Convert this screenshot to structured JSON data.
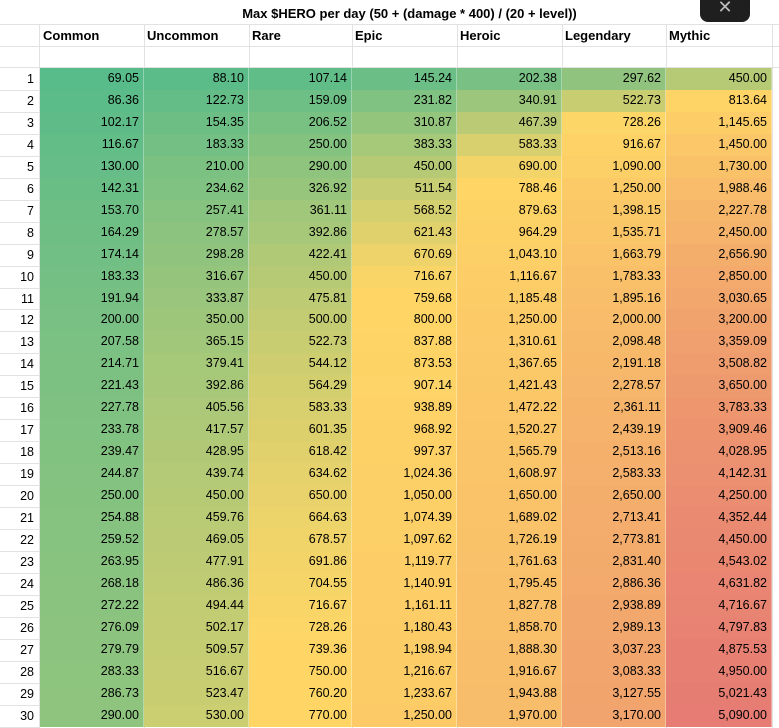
{
  "title": "Max $HERO per day (50 + (damage * 400) / (20 + level))",
  "close_icon": "close-icon",
  "close_glyph": "✕",
  "columns": [
    "Common",
    "Uncommon",
    "Rare",
    "Epic",
    "Heroic",
    "Legendary",
    "Mythic"
  ],
  "row_numbers": [
    "1",
    "2",
    "3",
    "4",
    "5",
    "6",
    "7",
    "8",
    "9",
    "10",
    "11",
    "12",
    "13",
    "14",
    "15",
    "16",
    "17",
    "18",
    "19",
    "20",
    "21",
    "22",
    "23",
    "24",
    "25",
    "26",
    "27",
    "28",
    "29",
    "30"
  ],
  "rows": [
    [
      "69.05",
      "88.10",
      "107.14",
      "145.24",
      "202.38",
      "297.62",
      "450.00"
    ],
    [
      "86.36",
      "122.73",
      "159.09",
      "231.82",
      "340.91",
      "522.73",
      "813.64"
    ],
    [
      "102.17",
      "154.35",
      "206.52",
      "310.87",
      "467.39",
      "728.26",
      "1,145.65"
    ],
    [
      "116.67",
      "183.33",
      "250.00",
      "383.33",
      "583.33",
      "916.67",
      "1,450.00"
    ],
    [
      "130.00",
      "210.00",
      "290.00",
      "450.00",
      "690.00",
      "1,090.00",
      "1,730.00"
    ],
    [
      "142.31",
      "234.62",
      "326.92",
      "511.54",
      "788.46",
      "1,250.00",
      "1,988.46"
    ],
    [
      "153.70",
      "257.41",
      "361.11",
      "568.52",
      "879.63",
      "1,398.15",
      "2,227.78"
    ],
    [
      "164.29",
      "278.57",
      "392.86",
      "621.43",
      "964.29",
      "1,535.71",
      "2,450.00"
    ],
    [
      "174.14",
      "298.28",
      "422.41",
      "670.69",
      "1,043.10",
      "1,663.79",
      "2,656.90"
    ],
    [
      "183.33",
      "316.67",
      "450.00",
      "716.67",
      "1,116.67",
      "1,783.33",
      "2,850.00"
    ],
    [
      "191.94",
      "333.87",
      "475.81",
      "759.68",
      "1,185.48",
      "1,895.16",
      "3,030.65"
    ],
    [
      "200.00",
      "350.00",
      "500.00",
      "800.00",
      "1,250.00",
      "2,000.00",
      "3,200.00"
    ],
    [
      "207.58",
      "365.15",
      "522.73",
      "837.88",
      "1,310.61",
      "2,098.48",
      "3,359.09"
    ],
    [
      "214.71",
      "379.41",
      "544.12",
      "873.53",
      "1,367.65",
      "2,191.18",
      "3,508.82"
    ],
    [
      "221.43",
      "392.86",
      "564.29",
      "907.14",
      "1,421.43",
      "2,278.57",
      "3,650.00"
    ],
    [
      "227.78",
      "405.56",
      "583.33",
      "938.89",
      "1,472.22",
      "2,361.11",
      "3,783.33"
    ],
    [
      "233.78",
      "417.57",
      "601.35",
      "968.92",
      "1,520.27",
      "2,439.19",
      "3,909.46"
    ],
    [
      "239.47",
      "428.95",
      "618.42",
      "997.37",
      "1,565.79",
      "2,513.16",
      "4,028.95"
    ],
    [
      "244.87",
      "439.74",
      "634.62",
      "1,024.36",
      "1,608.97",
      "2,583.33",
      "4,142.31"
    ],
    [
      "250.00",
      "450.00",
      "650.00",
      "1,050.00",
      "1,650.00",
      "2,650.00",
      "4,250.00"
    ],
    [
      "254.88",
      "459.76",
      "664.63",
      "1,074.39",
      "1,689.02",
      "2,713.41",
      "4,352.44"
    ],
    [
      "259.52",
      "469.05",
      "678.57",
      "1,097.62",
      "1,726.19",
      "2,773.81",
      "4,450.00"
    ],
    [
      "263.95",
      "477.91",
      "691.86",
      "1,119.77",
      "1,761.63",
      "2,831.40",
      "4,543.02"
    ],
    [
      "268.18",
      "486.36",
      "704.55",
      "1,140.91",
      "1,795.45",
      "2,886.36",
      "4,631.82"
    ],
    [
      "272.22",
      "494.44",
      "716.67",
      "1,161.11",
      "1,827.78",
      "2,938.89",
      "4,716.67"
    ],
    [
      "276.09",
      "502.17",
      "728.26",
      "1,180.43",
      "1,858.70",
      "2,989.13",
      "4,797.83"
    ],
    [
      "279.79",
      "509.57",
      "739.36",
      "1,198.94",
      "1,888.30",
      "3,037.23",
      "4,875.53"
    ],
    [
      "283.33",
      "516.67",
      "750.00",
      "1,216.67",
      "1,916.67",
      "3,083.33",
      "4,950.00"
    ],
    [
      "286.73",
      "523.47",
      "760.20",
      "1,233.67",
      "1,943.88",
      "3,127.55",
      "5,021.43"
    ],
    [
      "290.00",
      "530.00",
      "770.00",
      "1,250.00",
      "1,970.00",
      "3,170.00",
      "5,090.00"
    ]
  ],
  "colors": {
    "low": "#57bb8a",
    "mid": "#ffd666",
    "high": "#e67c73"
  }
}
